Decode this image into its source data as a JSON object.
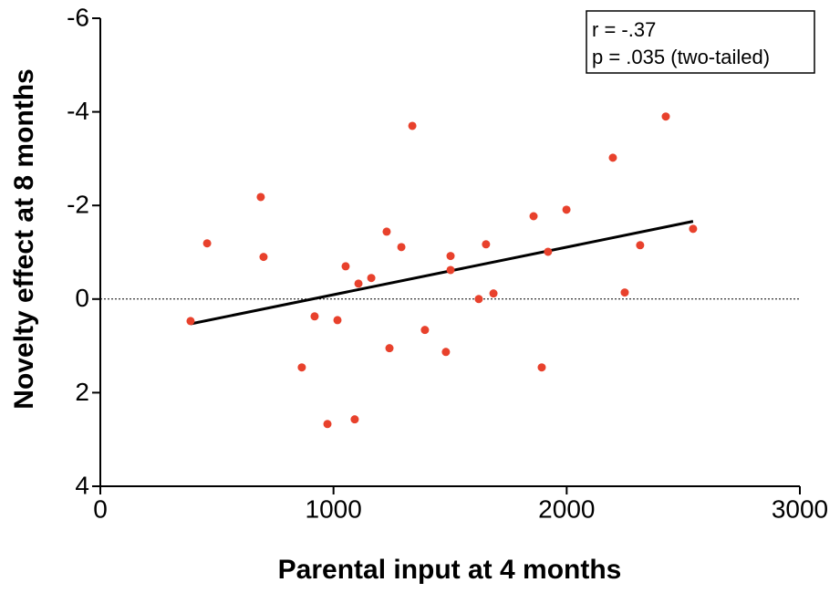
{
  "chart_data": {
    "type": "scatter",
    "xlabel": "Parental input at 4 months",
    "ylabel": "Novelty effect at 8 months",
    "annotations": [
      "r = -.37",
      "p = .035 (two-tailed)"
    ],
    "xlim": [
      0,
      3000
    ],
    "xticks": [
      0,
      1000,
      2000,
      3000
    ],
    "ylim": [
      4,
      -6
    ],
    "yticks": [
      -6,
      -4,
      -2,
      0,
      2,
      4
    ],
    "color": "#e8412c",
    "reference_line": 0,
    "fit_line": {
      "x": [
        387,
        2542
      ],
      "y": [
        0.53,
        -1.66
      ],
      "color": "#000000"
    },
    "x": [
      387,
      458,
      688,
      700,
      864,
      919,
      974,
      1017,
      1052,
      1091,
      1107,
      1162,
      1228,
      1240,
      1291,
      1338,
      1392,
      1482,
      1502,
      1502,
      1623,
      1654,
      1686,
      1858,
      1893,
      1920,
      1999,
      2198,
      2249,
      2315,
      2425,
      2542
    ],
    "values": [
      0.47,
      -1.19,
      -2.18,
      -0.9,
      1.46,
      0.37,
      2.67,
      0.45,
      -0.7,
      2.57,
      -0.33,
      -0.45,
      -1.44,
      1.05,
      -1.11,
      -3.7,
      0.66,
      1.13,
      -0.92,
      -0.62,
      0.0,
      -1.17,
      -0.12,
      -1.77,
      1.46,
      -1.01,
      -1.91,
      -3.02,
      -0.14,
      -1.15,
      -3.9,
      -1.5
    ]
  }
}
